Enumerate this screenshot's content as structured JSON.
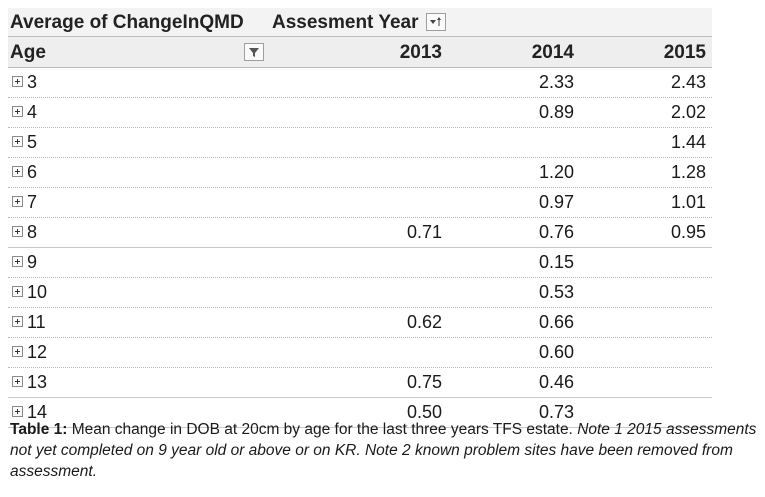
{
  "pivot": {
    "value_field": "Average of ChangeInQMD",
    "column_field": "Assesment Year",
    "row_field": "Age",
    "years": [
      "2013",
      "2014",
      "2015"
    ],
    "rows": [
      {
        "age": "3",
        "v2013": "",
        "v2014": "2.33",
        "v2015": "2.43"
      },
      {
        "age": "4",
        "v2013": "",
        "v2014": "0.89",
        "v2015": "2.02"
      },
      {
        "age": "5",
        "v2013": "",
        "v2014": "",
        "v2015": "1.44"
      },
      {
        "age": "6",
        "v2013": "",
        "v2014": "1.20",
        "v2015": "1.28"
      },
      {
        "age": "7",
        "v2013": "",
        "v2014": "0.97",
        "v2015": "1.01"
      },
      {
        "age": "8",
        "v2013": "0.71",
        "v2014": "0.76",
        "v2015": "0.95"
      },
      {
        "age": "9",
        "v2013": "",
        "v2014": "0.15",
        "v2015": ""
      },
      {
        "age": "10",
        "v2013": "",
        "v2014": "0.53",
        "v2015": ""
      },
      {
        "age": "11",
        "v2013": "0.62",
        "v2014": "0.66",
        "v2015": ""
      },
      {
        "age": "12",
        "v2013": "",
        "v2014": "0.60",
        "v2015": ""
      },
      {
        "age": "13",
        "v2013": "0.75",
        "v2014": "0.46",
        "v2015": ""
      },
      {
        "age": "14",
        "v2013": "0.50",
        "v2014": "0.73",
        "v2015": ""
      }
    ]
  },
  "caption": {
    "label": "Table 1:",
    "text": " Mean change in DOB at 20cm by age for the last three years TFS estate. ",
    "note": "Note 1 2015 assessments not yet completed on 9 year old or above or on KR. Note 2 known problem sites have been removed from assessment."
  },
  "icons": {
    "sort": "sort-dropdown-icon",
    "filter": "filter-dropdown-icon",
    "expand": "expand-plus-icon"
  }
}
